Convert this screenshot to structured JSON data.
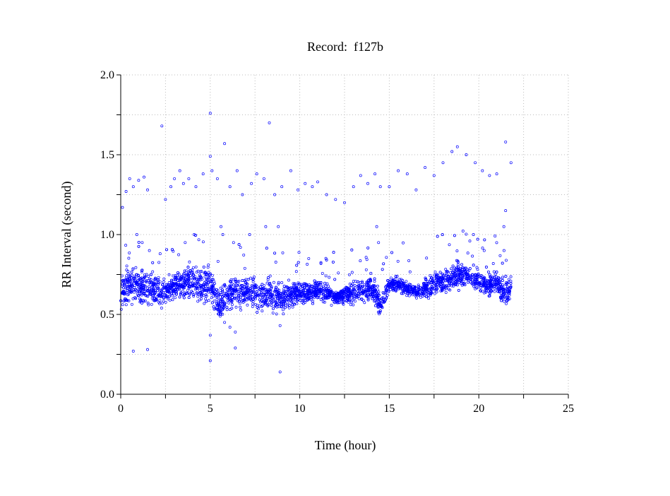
{
  "chart_data": {
    "type": "scatter",
    "title": "Record:  f127b",
    "xlabel": "Time (hour)",
    "ylabel": "RR Interval (second)",
    "xlim": [
      0,
      25
    ],
    "ylim": [
      0,
      2.0
    ],
    "x_ticks": [
      "0",
      "5",
      "10",
      "15",
      "20",
      "25"
    ],
    "x_tick_values": [
      0,
      5,
      10,
      15,
      20,
      25
    ],
    "y_ticks": [
      "0.0",
      "0.5",
      "1.0",
      "1.5",
      "2.0"
    ],
    "y_tick_values": [
      0,
      0.5,
      1.0,
      1.5,
      2.0
    ],
    "grid": true,
    "marker_color": "#0000ff",
    "note": "Dense RR band summarized as center/spread per hour segment; isolated points listed explicitly",
    "band": {
      "hours": [
        0,
        0.5,
        1,
        1.5,
        2,
        2.5,
        3,
        3.5,
        4,
        4.5,
        5,
        5.5,
        6,
        6.5,
        7,
        7.5,
        8,
        8.5,
        9,
        9.5,
        10,
        10.5,
        11,
        11.5,
        12,
        12.5,
        13,
        13.5,
        14,
        14.5,
        15,
        15.5,
        16,
        16.5,
        17,
        17.5,
        18,
        18.5,
        19,
        19.5,
        20,
        20.5,
        21,
        21.5,
        21.8
      ],
      "center": [
        0.64,
        0.68,
        0.68,
        0.66,
        0.65,
        0.63,
        0.68,
        0.7,
        0.71,
        0.68,
        0.7,
        0.55,
        0.63,
        0.64,
        0.64,
        0.63,
        0.62,
        0.62,
        0.6,
        0.63,
        0.64,
        0.63,
        0.65,
        0.63,
        0.61,
        0.62,
        0.64,
        0.65,
        0.66,
        0.56,
        0.68,
        0.69,
        0.66,
        0.64,
        0.67,
        0.69,
        0.71,
        0.73,
        0.75,
        0.74,
        0.7,
        0.69,
        0.7,
        0.62,
        0.68
      ],
      "spread": [
        0.09,
        0.09,
        0.1,
        0.08,
        0.07,
        0.06,
        0.07,
        0.07,
        0.08,
        0.09,
        0.09,
        0.06,
        0.08,
        0.08,
        0.07,
        0.07,
        0.08,
        0.07,
        0.07,
        0.07,
        0.06,
        0.05,
        0.05,
        0.04,
        0.03,
        0.04,
        0.05,
        0.06,
        0.06,
        0.06,
        0.04,
        0.04,
        0.03,
        0.03,
        0.05,
        0.05,
        0.06,
        0.06,
        0.06,
        0.05,
        0.05,
        0.06,
        0.05,
        0.07,
        0.06
      ]
    },
    "points": [
      [
        0.1,
        1.17
      ],
      [
        0.3,
        1.27
      ],
      [
        0.5,
        1.35
      ],
      [
        0.7,
        1.3
      ],
      [
        1.0,
        1.34
      ],
      [
        1.3,
        1.36
      ],
      [
        1.5,
        1.28
      ],
      [
        2.3,
        1.68
      ],
      [
        2.5,
        1.22
      ],
      [
        2.8,
        1.3
      ],
      [
        3.0,
        1.35
      ],
      [
        3.3,
        1.4
      ],
      [
        3.5,
        1.32
      ],
      [
        3.8,
        1.35
      ],
      [
        4.2,
        1.3
      ],
      [
        4.6,
        1.38
      ],
      [
        5.0,
        1.49
      ],
      [
        5.0,
        1.76
      ],
      [
        5.1,
        1.4
      ],
      [
        5.4,
        1.35
      ],
      [
        5.8,
        1.57
      ],
      [
        6.1,
        1.3
      ],
      [
        6.5,
        1.4
      ],
      [
        6.8,
        1.25
      ],
      [
        7.3,
        1.32
      ],
      [
        7.6,
        1.38
      ],
      [
        8.0,
        1.35
      ],
      [
        8.3,
        1.7
      ],
      [
        8.6,
        1.25
      ],
      [
        9.0,
        1.3
      ],
      [
        9.5,
        1.4
      ],
      [
        9.9,
        1.28
      ],
      [
        10.3,
        1.32
      ],
      [
        10.7,
        1.3
      ],
      [
        11.0,
        1.33
      ],
      [
        11.5,
        1.25
      ],
      [
        12.0,
        1.22
      ],
      [
        12.5,
        1.2
      ],
      [
        13.0,
        1.3
      ],
      [
        13.4,
        1.37
      ],
      [
        13.8,
        1.32
      ],
      [
        14.2,
        1.38
      ],
      [
        14.5,
        1.3
      ],
      [
        15.0,
        1.3
      ],
      [
        15.5,
        1.4
      ],
      [
        16.0,
        1.38
      ],
      [
        16.5,
        1.28
      ],
      [
        17.0,
        1.42
      ],
      [
        17.5,
        1.37
      ],
      [
        18.0,
        1.45
      ],
      [
        18.5,
        1.52
      ],
      [
        18.8,
        1.55
      ],
      [
        19.3,
        1.5
      ],
      [
        19.8,
        1.45
      ],
      [
        20.2,
        1.4
      ],
      [
        20.6,
        1.37
      ],
      [
        21.0,
        1.38
      ],
      [
        21.5,
        1.58
      ],
      [
        21.8,
        1.45
      ],
      [
        0.7,
        0.27
      ],
      [
        1.5,
        0.28
      ],
      [
        5.0,
        0.37
      ],
      [
        5.0,
        0.21
      ],
      [
        6.4,
        0.39
      ],
      [
        6.4,
        0.29
      ],
      [
        8.9,
        0.14
      ],
      [
        8.9,
        0.43
      ],
      [
        5.8,
        0.45
      ],
      [
        6.1,
        0.42
      ],
      [
        0.9,
        1.0
      ],
      [
        1.2,
        0.95
      ],
      [
        1.6,
        0.9
      ],
      [
        2.2,
        0.88
      ],
      [
        3.6,
        0.95
      ],
      [
        4.1,
        1.0
      ],
      [
        5.6,
        1.05
      ],
      [
        5.7,
        1.0
      ],
      [
        6.3,
        0.95
      ],
      [
        7.2,
        1.0
      ],
      [
        8.1,
        1.05
      ],
      [
        8.8,
        1.05
      ],
      [
        10.5,
        0.85
      ],
      [
        14.3,
        1.05
      ],
      [
        14.4,
        0.95
      ],
      [
        19.7,
        1.0
      ],
      [
        20.3,
        0.9
      ],
      [
        21.4,
        1.05
      ],
      [
        21.5,
        1.15
      ]
    ]
  }
}
